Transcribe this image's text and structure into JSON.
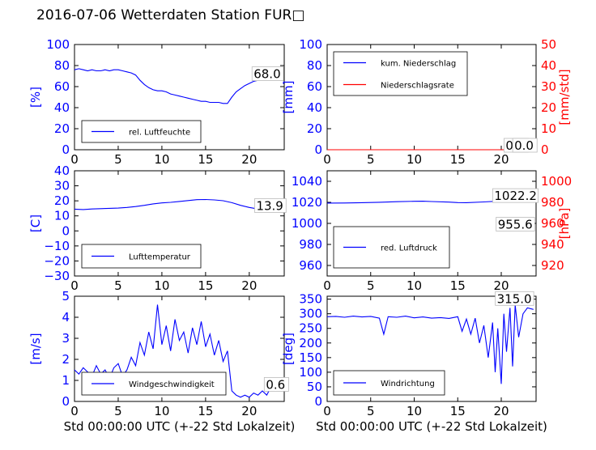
{
  "figure": {
    "title": "2016-07-06 Wetterdaten Station FUR□"
  },
  "chart_data": [
    {
      "type": "line",
      "panel": "top-left",
      "ylabel": "[%]",
      "ylabel_color": "#0000ff",
      "xlim": [
        0,
        24
      ],
      "ylim": [
        0,
        100
      ],
      "xticks": [
        "0",
        "5",
        "10",
        "15",
        "20"
      ],
      "yticks": [
        "0",
        "20",
        "40",
        "60",
        "80",
        "100"
      ],
      "legend": "bottom-left",
      "annotation": "68.0",
      "series": [
        {
          "name": "rel. Luftfeuchte",
          "color": "#0000ff",
          "x": [
            0,
            0.5,
            1,
            1.5,
            2,
            2.5,
            3,
            3.5,
            4,
            4.5,
            5,
            5.5,
            6,
            6.5,
            7,
            7.5,
            8,
            8.5,
            9,
            9.5,
            10,
            10.5,
            11,
            11.5,
            12,
            12.5,
            13,
            13.5,
            14,
            14.5,
            15,
            15.5,
            16,
            16.5,
            17,
            17.5,
            18,
            18.5,
            19,
            19.5,
            20,
            20.5,
            21,
            21.5,
            22,
            22.5,
            23,
            23.5
          ],
          "y": [
            76,
            77,
            76,
            75,
            76,
            75,
            75,
            76,
            75,
            76,
            76,
            75,
            74,
            73,
            71,
            66,
            62,
            59,
            57,
            56,
            56,
            55,
            53,
            52,
            51,
            50,
            49,
            48,
            47,
            46,
            46,
            45,
            45,
            45,
            44,
            44,
            50,
            55,
            58,
            61,
            63,
            65,
            66,
            67,
            68,
            69,
            69,
            68
          ]
        }
      ]
    },
    {
      "type": "line",
      "panel": "top-right",
      "ylabel": "[mm]",
      "ylabel_color": "#0000ff",
      "y2label": "[mm/std]",
      "y2label_color": "#ff0000",
      "xlim": [
        0,
        24
      ],
      "ylim": [
        0,
        100
      ],
      "y2lim": [
        0,
        50
      ],
      "xticks": [
        "0",
        "5",
        "10",
        "15",
        "20"
      ],
      "yticks": [
        "0",
        "20",
        "40",
        "60",
        "80",
        "100"
      ],
      "y2ticks": [
        "0",
        "10",
        "20",
        "30",
        "40",
        "50"
      ],
      "legend": "top-left",
      "annotation": "0.0",
      "annotation2": "0.0",
      "series": [
        {
          "name": "kum. Niederschlag",
          "color": "#0000ff",
          "axis": "left",
          "x": [
            0,
            24
          ],
          "y": [
            0,
            0
          ]
        },
        {
          "name": "Niederschlagsrate",
          "color": "#ff0000",
          "axis": "right",
          "x": [
            0,
            24
          ],
          "y": [
            0,
            0
          ]
        }
      ]
    },
    {
      "type": "line",
      "panel": "middle-left",
      "ylabel": "[C]",
      "ylabel_color": "#0000ff",
      "xlim": [
        0,
        24
      ],
      "ylim": [
        -30,
        40
      ],
      "xticks": [
        "0",
        "5",
        "10",
        "15",
        "20"
      ],
      "yticks": [
        "−30",
        "−20",
        "−10",
        "0",
        "10",
        "20",
        "30",
        "40"
      ],
      "legend": "bottom-left",
      "annotation": "13.9",
      "series": [
        {
          "name": "Lufttemperatur",
          "color": "#0000ff",
          "x": [
            0,
            1,
            2,
            3,
            4,
            5,
            6,
            7,
            8,
            9,
            10,
            11,
            12,
            13,
            14,
            15,
            16,
            17,
            18,
            19,
            20,
            21,
            22,
            23,
            23.7
          ],
          "y": [
            14.5,
            14.2,
            14.6,
            14.8,
            15,
            15.2,
            15.6,
            16.2,
            17,
            18,
            18.6,
            19,
            19.6,
            20.2,
            20.8,
            20.9,
            20.6,
            20.1,
            18.8,
            17,
            15.6,
            14.6,
            14.2,
            14,
            13.9
          ]
        }
      ]
    },
    {
      "type": "line",
      "panel": "middle-right",
      "ylabel_color": "#0000ff",
      "y2label": "[hPa]",
      "y2label_color": "#ff0000",
      "xlim": [
        0,
        24
      ],
      "ylim": [
        950,
        1050
      ],
      "y2lim": [
        910,
        1010
      ],
      "xticks": [
        "0",
        "5",
        "10",
        "15",
        "20"
      ],
      "yticks": [
        "960",
        "980",
        "1000",
        "1020",
        "1040"
      ],
      "y2ticks": [
        "920",
        "940",
        "960",
        "980",
        "1000"
      ],
      "legend": "bottom-left",
      "annotation": "1022.2",
      "annotation2": "955.6",
      "series": [
        {
          "name": "red. Luftdruck",
          "color": "#0000ff",
          "axis": "left",
          "x": [
            0,
            2,
            4,
            6,
            8,
            10,
            11,
            12,
            14,
            15,
            16,
            18,
            20,
            22,
            23.7
          ],
          "y": [
            1019.3,
            1019.4,
            1019.7,
            1020.1,
            1020.6,
            1021.0,
            1021.1,
            1020.8,
            1020.2,
            1019.8,
            1019.7,
            1020.4,
            1021.3,
            1021.9,
            1022.2
          ]
        }
      ]
    },
    {
      "type": "line",
      "panel": "bottom-left",
      "ylabel": "[m/s]",
      "ylabel_color": "#0000ff",
      "xlabel": "Std 00:00:00 UTC (+-22 Std Lokalzeit)",
      "xlim": [
        0,
        24
      ],
      "ylim": [
        0,
        5
      ],
      "xticks": [
        "0",
        "5",
        "10",
        "15",
        "20"
      ],
      "yticks": [
        "0",
        "1",
        "2",
        "3",
        "4",
        "5"
      ],
      "legend": "bottom-left",
      "annotation": "0.6",
      "series": [
        {
          "name": "Windgeschwindigkeit",
          "color": "#0000ff",
          "x": [
            0,
            0.5,
            1,
            1.5,
            2,
            2.5,
            3,
            3.5,
            4,
            4.5,
            5,
            5.5,
            6,
            6.5,
            7,
            7.5,
            8,
            8.5,
            9,
            9.5,
            10,
            10.5,
            11,
            11.5,
            12,
            12.5,
            13,
            13.5,
            14,
            14.5,
            15,
            15.5,
            16,
            16.5,
            17,
            17.5,
            18,
            18.5,
            19,
            19.5,
            20,
            20.5,
            21,
            21.5,
            22,
            22.5,
            23,
            23.5
          ],
          "y": [
            1.5,
            1.3,
            1.6,
            1.4,
            1.2,
            1.7,
            1.3,
            1.5,
            1.1,
            1.6,
            1.8,
            1.2,
            1.5,
            2.1,
            1.7,
            2.8,
            2.2,
            3.3,
            2.5,
            4.6,
            2.7,
            3.6,
            2.4,
            3.9,
            2.9,
            3.3,
            2.3,
            3.5,
            2.7,
            3.8,
            2.6,
            3.2,
            2.2,
            2.9,
            1.9,
            2.4,
            0.5,
            0.3,
            0.2,
            0.3,
            0.2,
            0.4,
            0.3,
            0.5,
            0.3,
            0.7,
            0.8,
            0.6
          ]
        }
      ]
    },
    {
      "type": "line",
      "panel": "bottom-right",
      "ylabel": "[deg]",
      "ylabel_color": "#0000ff",
      "xlabel": "Std 00:00:00 UTC (+-22 Std Lokalzeit)",
      "xlim": [
        0,
        24
      ],
      "ylim": [
        0,
        360
      ],
      "xticks": [
        "0",
        "5",
        "10",
        "15",
        "20"
      ],
      "yticks": [
        "0",
        "50",
        "100",
        "150",
        "200",
        "250",
        "300",
        "350"
      ],
      "legend": "bottom-left",
      "annotation": "315.0",
      "series": [
        {
          "name": "Windrichtung",
          "color": "#0000ff",
          "x": [
            0,
            1,
            2,
            3,
            4,
            5,
            6,
            6.5,
            7,
            8,
            9,
            10,
            11,
            12,
            13,
            14,
            15,
            15.5,
            16,
            16.5,
            17,
            17.5,
            18,
            18.5,
            19,
            19.3,
            19.6,
            20,
            20.3,
            20.6,
            21,
            21.3,
            21.6,
            22,
            22.5,
            23,
            23.7
          ],
          "y": [
            290,
            291,
            288,
            292,
            289,
            291,
            285,
            230,
            290,
            288,
            292,
            286,
            289,
            285,
            287,
            284,
            290,
            240,
            282,
            230,
            285,
            200,
            260,
            150,
            270,
            100,
            250,
            60,
            300,
            170,
            320,
            120,
            330,
            220,
            300,
            320,
            315
          ]
        }
      ]
    }
  ]
}
